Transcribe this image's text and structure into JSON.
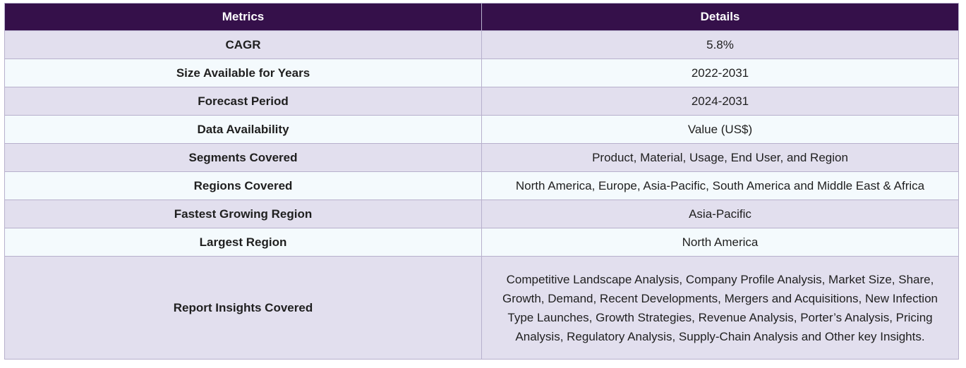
{
  "table": {
    "headers": {
      "metrics": "Metrics",
      "details": "Details"
    },
    "rows": [
      {
        "metric": "CAGR",
        "detail": "5.8%"
      },
      {
        "metric": "Size Available for Years",
        "detail": "2022-2031"
      },
      {
        "metric": "Forecast Period",
        "detail": "2024-2031"
      },
      {
        "metric": "Data Availability",
        "detail": "Value (US$)"
      },
      {
        "metric": "Segments Covered",
        "detail": "Product, Material, Usage, End User, and Region"
      },
      {
        "metric": "Regions Covered",
        "detail": "North America, Europe, Asia-Pacific, South America and Middle East & Africa"
      },
      {
        "metric": "Fastest Growing Region",
        "detail": "Asia-Pacific"
      },
      {
        "metric": "Largest Region",
        "detail": "North America"
      },
      {
        "metric": "Report Insights Covered",
        "detail": "Competitive Landscape Analysis, Company Profile Analysis, Market Size, Share, Growth, Demand, Recent Developments, Mergers and Acquisitions, New Infection Type Launches, Growth Strategies, Revenue Analysis, Porter’s Analysis, Pricing Analysis, Regulatory Analysis, Supply-Chain Analysis and Other key Insights."
      }
    ]
  },
  "colors": {
    "header_bg": "#35104a",
    "row_odd_bg": "#e2dfee",
    "row_even_bg": "#f4fafd",
    "border": "#b7b0cc"
  }
}
